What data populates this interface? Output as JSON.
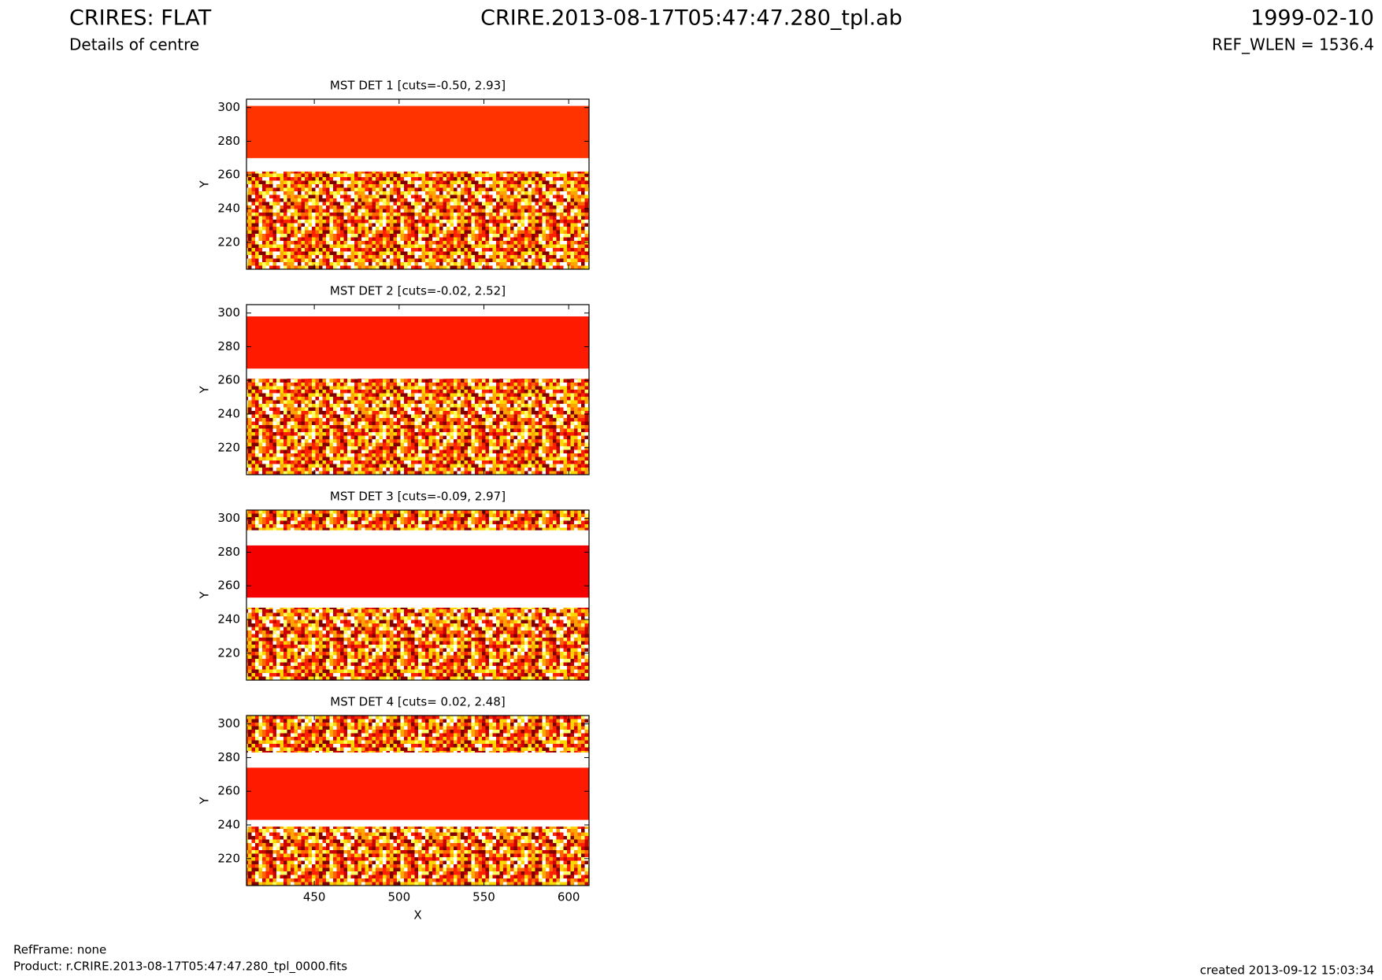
{
  "header": {
    "title": "CRIRES: FLAT",
    "subtitle": "Details of centre",
    "file": "CRIRE.2013-08-17T05:47:47.280_tpl.ab",
    "date": "1999-02-10",
    "ref": "REF_WLEN = 1536.4"
  },
  "footer": {
    "frame": "RefFrame: none",
    "product": "Product: r.CRIRE.2013-08-17T05:47:47.280_tpl_0000.fits",
    "created": "created 2013-09-12 15:03:34"
  },
  "chart_data": [
    {
      "type": "heatmap",
      "title": "MST DET 1 [cuts=-0.50, 2.93]",
      "ylabel": "Y",
      "xlim": [
        410,
        612
      ],
      "ylim": [
        204,
        305
      ],
      "xticks": [
        450,
        500,
        550,
        600
      ],
      "yticks": [
        220,
        240,
        260,
        280,
        300
      ],
      "show_xticklabels": false,
      "regions": [
        {
          "y": [
            204,
            262
          ],
          "fill": "noise"
        },
        {
          "y": [
            270,
            301
          ],
          "fill": "#ff3300"
        }
      ]
    },
    {
      "type": "heatmap",
      "title": "MST DET 2 [cuts=-0.02, 2.52]",
      "ylabel": "Y",
      "xlim": [
        410,
        612
      ],
      "ylim": [
        204,
        305
      ],
      "xticks": [
        450,
        500,
        550,
        600
      ],
      "yticks": [
        220,
        240,
        260,
        280,
        300
      ],
      "show_xticklabels": false,
      "regions": [
        {
          "y": [
            204,
            261
          ],
          "fill": "noise"
        },
        {
          "y": [
            267,
            298
          ],
          "fill": "#ff1a00"
        }
      ]
    },
    {
      "type": "heatmap",
      "title": "MST DET 3 [cuts=-0.09, 2.97]",
      "ylabel": "Y",
      "xlim": [
        410,
        612
      ],
      "ylim": [
        204,
        305
      ],
      "xticks": [
        450,
        500,
        550,
        600
      ],
      "yticks": [
        220,
        240,
        260,
        280,
        300
      ],
      "show_xticklabels": false,
      "regions": [
        {
          "y": [
            204,
            247
          ],
          "fill": "noise"
        },
        {
          "y": [
            253,
            284
          ],
          "fill": "#f50000"
        },
        {
          "y": [
            293,
            305
          ],
          "fill": "noise"
        }
      ]
    },
    {
      "type": "heatmap",
      "title": "MST DET 4 [cuts= 0.02, 2.48]",
      "xlabel": "X",
      "ylabel": "Y",
      "xlim": [
        410,
        612
      ],
      "ylim": [
        204,
        305
      ],
      "xticks": [
        450,
        500,
        550,
        600
      ],
      "yticks": [
        220,
        240,
        260,
        280,
        300
      ],
      "show_xticklabels": true,
      "regions": [
        {
          "y": [
            204,
            239
          ],
          "fill": "noise"
        },
        {
          "y": [
            243,
            274
          ],
          "fill": "#ff1a00"
        },
        {
          "y": [
            283,
            305
          ],
          "fill": "noise"
        }
      ]
    }
  ]
}
